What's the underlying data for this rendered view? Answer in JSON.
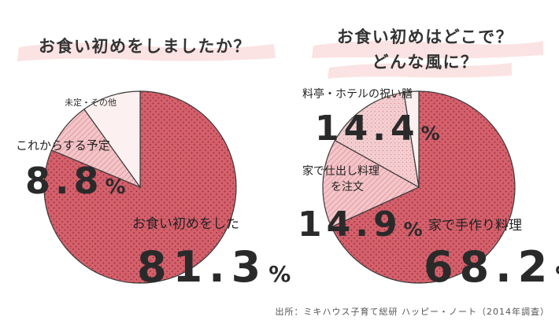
{
  "source_text": "出所：ミキハウス子育て総研 ハッピー・ノート（2014年調査）",
  "colors": {
    "dark": "#d4606c",
    "mid": "#f3c6c9",
    "light": "#fcf0f0",
    "stroke": "#3a3a3a",
    "brush": "#fbe3e3"
  },
  "chart_data": [
    {
      "type": "pie",
      "title": "お食い初めをしましたか？",
      "slices": [
        {
          "label": "お食い初めをした",
          "value": 81.3,
          "display": "81.3",
          "pattern": "dots-dark"
        },
        {
          "label": "これからする予定",
          "value": 8.8,
          "display": "8.8",
          "pattern": "stripes"
        },
        {
          "label": "未定・その他",
          "value": 9.9,
          "display": "",
          "pattern": "plain-light"
        }
      ]
    },
    {
      "type": "pie",
      "title": "お食い初めはどこで？\nどんな風に？",
      "slices": [
        {
          "label": "家で手作り料理",
          "value": 68.2,
          "display": "68.2",
          "pattern": "dots-dark"
        },
        {
          "label": "家で仕出し料理\nを注文",
          "value": 14.9,
          "display": "14.9",
          "pattern": "stripes"
        },
        {
          "label": "料亭・ホテルの祝い膳",
          "value": 14.4,
          "display": "14.4",
          "pattern": "dots-light"
        },
        {
          "label": "",
          "value": 2.5,
          "display": "",
          "pattern": "plain-light"
        }
      ]
    }
  ]
}
